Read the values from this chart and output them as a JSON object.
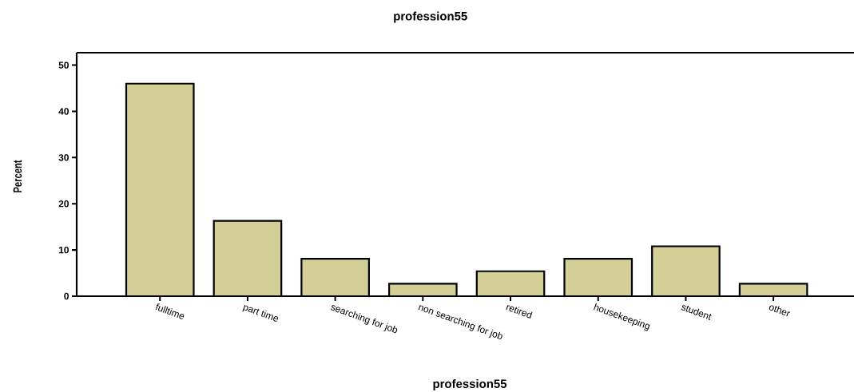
{
  "chart_data": {
    "type": "bar",
    "title": "profession55",
    "xlabel": "profession55",
    "ylabel": "Percent",
    "categories": [
      "fulltime",
      "part time",
      "searching for job",
      "non searching for job",
      "retired",
      "housekeeping",
      "student",
      "other"
    ],
    "values": [
      46.0,
      16.3,
      8.1,
      2.7,
      5.4,
      8.1,
      10.8,
      2.7
    ],
    "color": "#d3cf96",
    "ylim": [
      0,
      52.7
    ],
    "yticks": [
      0,
      10,
      20,
      30,
      40,
      50
    ]
  }
}
